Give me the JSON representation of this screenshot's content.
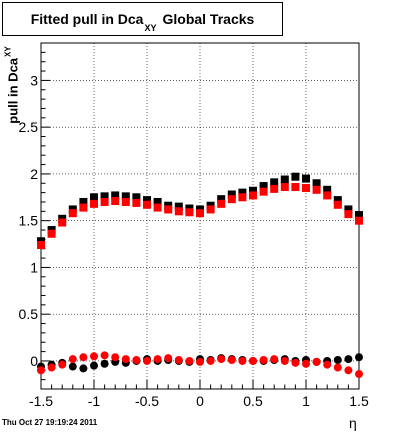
{
  "title": {
    "main": "Fitted pull in Dca",
    "sub": "XY",
    "suffix": "Global Tracks"
  },
  "ylabel": {
    "main": "pull in Dca",
    "sub": "XY"
  },
  "xlabel": "η",
  "footer": "Thu Oct 27 19:19:24 2011",
  "chart_data": {
    "type": "scatter",
    "title": "Fitted pull in Dca_XY  Global Tracks",
    "xlabel": "η",
    "ylabel": "pull in Dca_XY",
    "xlim": [
      -1.5,
      1.5
    ],
    "ylim": [
      -0.3,
      3.4
    ],
    "xticks": [
      -1.5,
      -1,
      -0.5,
      0,
      0.5,
      1,
      1.5
    ],
    "xtick_labels": [
      "-1.5",
      "-1",
      "-0.5",
      "0",
      "0.5",
      "1",
      "1.5"
    ],
    "yticks": [
      0,
      0.5,
      1,
      1.5,
      2,
      2.5,
      3
    ],
    "ytick_labels": [
      "0",
      "0.5",
      "1",
      "1.5",
      "2",
      "2.5",
      "3"
    ],
    "grid": true,
    "series": [
      {
        "color": "#000000",
        "marker": "square",
        "x": [
          -1.5,
          -1.4,
          -1.3,
          -1.2,
          -1.1,
          -1.0,
          -0.9,
          -0.8,
          -0.7,
          -0.6,
          -0.5,
          -0.4,
          -0.3,
          -0.2,
          -0.1,
          0.0,
          0.1,
          0.2,
          0.3,
          0.4,
          0.5,
          0.6,
          0.7,
          0.8,
          0.9,
          1.0,
          1.1,
          1.2,
          1.3,
          1.4,
          1.5
        ],
        "y": [
          1.28,
          1.4,
          1.52,
          1.62,
          1.7,
          1.75,
          1.76,
          1.77,
          1.76,
          1.75,
          1.72,
          1.7,
          1.66,
          1.65,
          1.63,
          1.62,
          1.66,
          1.73,
          1.78,
          1.8,
          1.82,
          1.87,
          1.91,
          1.94,
          1.97,
          1.95,
          1.9,
          1.83,
          1.72,
          1.62,
          1.56
        ]
      },
      {
        "color": "#ff0000",
        "marker": "square",
        "x": [
          -1.5,
          -1.4,
          -1.3,
          -1.2,
          -1.1,
          -1.0,
          -0.9,
          -0.8,
          -0.7,
          -0.6,
          -0.5,
          -0.4,
          -0.3,
          -0.2,
          -0.1,
          0.0,
          0.1,
          0.2,
          0.3,
          0.4,
          0.5,
          0.6,
          0.7,
          0.8,
          0.9,
          1.0,
          1.1,
          1.2,
          1.3,
          1.4,
          1.5
        ],
        "y": [
          1.24,
          1.36,
          1.48,
          1.58,
          1.64,
          1.68,
          1.7,
          1.71,
          1.7,
          1.69,
          1.67,
          1.64,
          1.62,
          1.6,
          1.59,
          1.58,
          1.62,
          1.68,
          1.73,
          1.75,
          1.77,
          1.81,
          1.84,
          1.86,
          1.86,
          1.85,
          1.83,
          1.77,
          1.67,
          1.57,
          1.5
        ]
      },
      {
        "color": "#000000",
        "marker": "circle",
        "x": [
          -1.5,
          -1.4,
          -1.3,
          -1.2,
          -1.1,
          -1.0,
          -0.9,
          -0.8,
          -0.7,
          -0.6,
          -0.5,
          -0.4,
          -0.3,
          -0.2,
          -0.1,
          0.0,
          0.1,
          0.2,
          0.3,
          0.4,
          0.5,
          0.6,
          0.7,
          0.8,
          0.9,
          1.0,
          1.1,
          1.2,
          1.3,
          1.4,
          1.5
        ],
        "y": [
          -0.06,
          -0.04,
          -0.02,
          -0.06,
          -0.08,
          -0.05,
          -0.03,
          -0.01,
          -0.02,
          0.0,
          0.02,
          0.0,
          0.01,
          0.0,
          -0.01,
          0.02,
          0.01,
          0.03,
          0.02,
          0.01,
          0.0,
          0.0,
          0.01,
          0.02,
          0.0,
          0.01,
          -0.01,
          0.0,
          0.01,
          0.02,
          0.04
        ]
      },
      {
        "color": "#ff0000",
        "marker": "circle",
        "x": [
          -1.5,
          -1.4,
          -1.3,
          -1.2,
          -1.1,
          -1.0,
          -0.9,
          -0.8,
          -0.7,
          -0.6,
          -0.5,
          -0.4,
          -0.3,
          -0.2,
          -0.1,
          0.0,
          0.1,
          0.2,
          0.3,
          0.4,
          0.5,
          0.6,
          0.7,
          0.8,
          0.9,
          1.0,
          1.1,
          1.2,
          1.3,
          1.4,
          1.5
        ],
        "y": [
          -0.1,
          -0.07,
          -0.04,
          0.02,
          0.04,
          0.05,
          0.06,
          0.04,
          0.02,
          0.01,
          0.0,
          0.02,
          0.03,
          0.01,
          0.0,
          -0.01,
          0.0,
          0.02,
          0.01,
          0.0,
          0.0,
          0.01,
          0.02,
          0.0,
          -0.02,
          -0.03,
          -0.01,
          -0.04,
          -0.07,
          -0.1,
          -0.14
        ]
      }
    ]
  }
}
